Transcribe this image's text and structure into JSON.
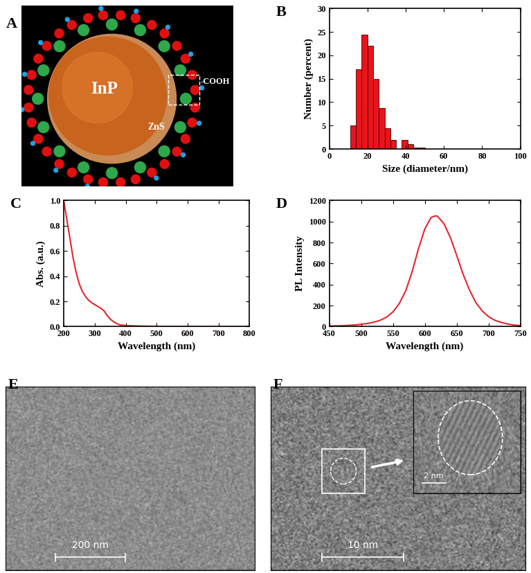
{
  "chart_data": [
    {
      "type": "diagram",
      "title": "A",
      "annotations": [
        "InP",
        "ZnS",
        "-COOH"
      ]
    },
    {
      "type": "histogram",
      "title": "B",
      "x_label": "Size (diameter/nm)",
      "y_label": "Number (percent)",
      "bins": [
        11,
        14,
        17,
        20,
        23,
        26,
        29,
        32,
        35,
        38,
        41,
        44,
        47,
        50
      ],
      "values": [
        5,
        17,
        24.5,
        22,
        15,
        8.7,
        4.5,
        2,
        0,
        2,
        1,
        0.3,
        0.3
      ],
      "color": "#e8141b",
      "xlim": [
        0,
        100
      ],
      "xticks": [
        0,
        20,
        40,
        60,
        80,
        100
      ],
      "ylim": [
        0,
        30
      ],
      "yticks": [
        0,
        5,
        10,
        15,
        20,
        25,
        30
      ]
    },
    {
      "type": "line",
      "title": "C",
      "x_label": "Wavelength (nm)",
      "y_label": "Abs. (a.u.)",
      "x": [
        200,
        210,
        220,
        230,
        240,
        250,
        260,
        270,
        280,
        290,
        300,
        310,
        320,
        330,
        340,
        350,
        360,
        370,
        380,
        400,
        450,
        500,
        600,
        700,
        800
      ],
      "values": [
        1.0,
        0.85,
        0.7,
        0.55,
        0.43,
        0.34,
        0.28,
        0.24,
        0.21,
        0.19,
        0.175,
        0.16,
        0.145,
        0.125,
        0.09,
        0.06,
        0.04,
        0.025,
        0.015,
        0.008,
        0.004,
        0.002,
        0.001,
        0.0,
        0.0
      ],
      "color": "#e8242b",
      "xlim": [
        200,
        800
      ],
      "xticks": [
        200,
        300,
        400,
        500,
        600,
        700,
        800
      ],
      "ylim": [
        0.0,
        1.0
      ],
      "yticks": [
        0.0,
        0.2,
        0.4,
        0.6,
        0.8,
        1.0
      ]
    },
    {
      "type": "line",
      "title": "D",
      "x_label": "Wavelength (nm)",
      "y_label": "PL Intensity",
      "x": [
        450,
        460,
        470,
        480,
        490,
        500,
        510,
        520,
        530,
        540,
        550,
        560,
        570,
        580,
        590,
        600,
        610,
        617,
        620,
        630,
        640,
        650,
        660,
        670,
        680,
        690,
        700,
        710,
        720,
        730,
        740,
        750
      ],
      "values": [
        5,
        7,
        9,
        12,
        16,
        22,
        30,
        42,
        60,
        90,
        140,
        220,
        340,
        520,
        740,
        930,
        1040,
        1055,
        1050,
        980,
        850,
        680,
        500,
        350,
        230,
        150,
        95,
        60,
        40,
        25,
        15,
        10
      ],
      "color": "#e8242b",
      "xlim": [
        450,
        750
      ],
      "xticks": [
        450,
        500,
        550,
        600,
        650,
        700,
        750
      ],
      "ylim": [
        0,
        1200
      ],
      "yticks": [
        0,
        200,
        400,
        600,
        800,
        1000,
        1200
      ]
    },
    {
      "type": "image",
      "title": "E",
      "annotations": [
        "200 nm"
      ]
    },
    {
      "type": "image",
      "title": "F",
      "annotations": [
        "10 nm",
        "2 nm"
      ]
    }
  ]
}
